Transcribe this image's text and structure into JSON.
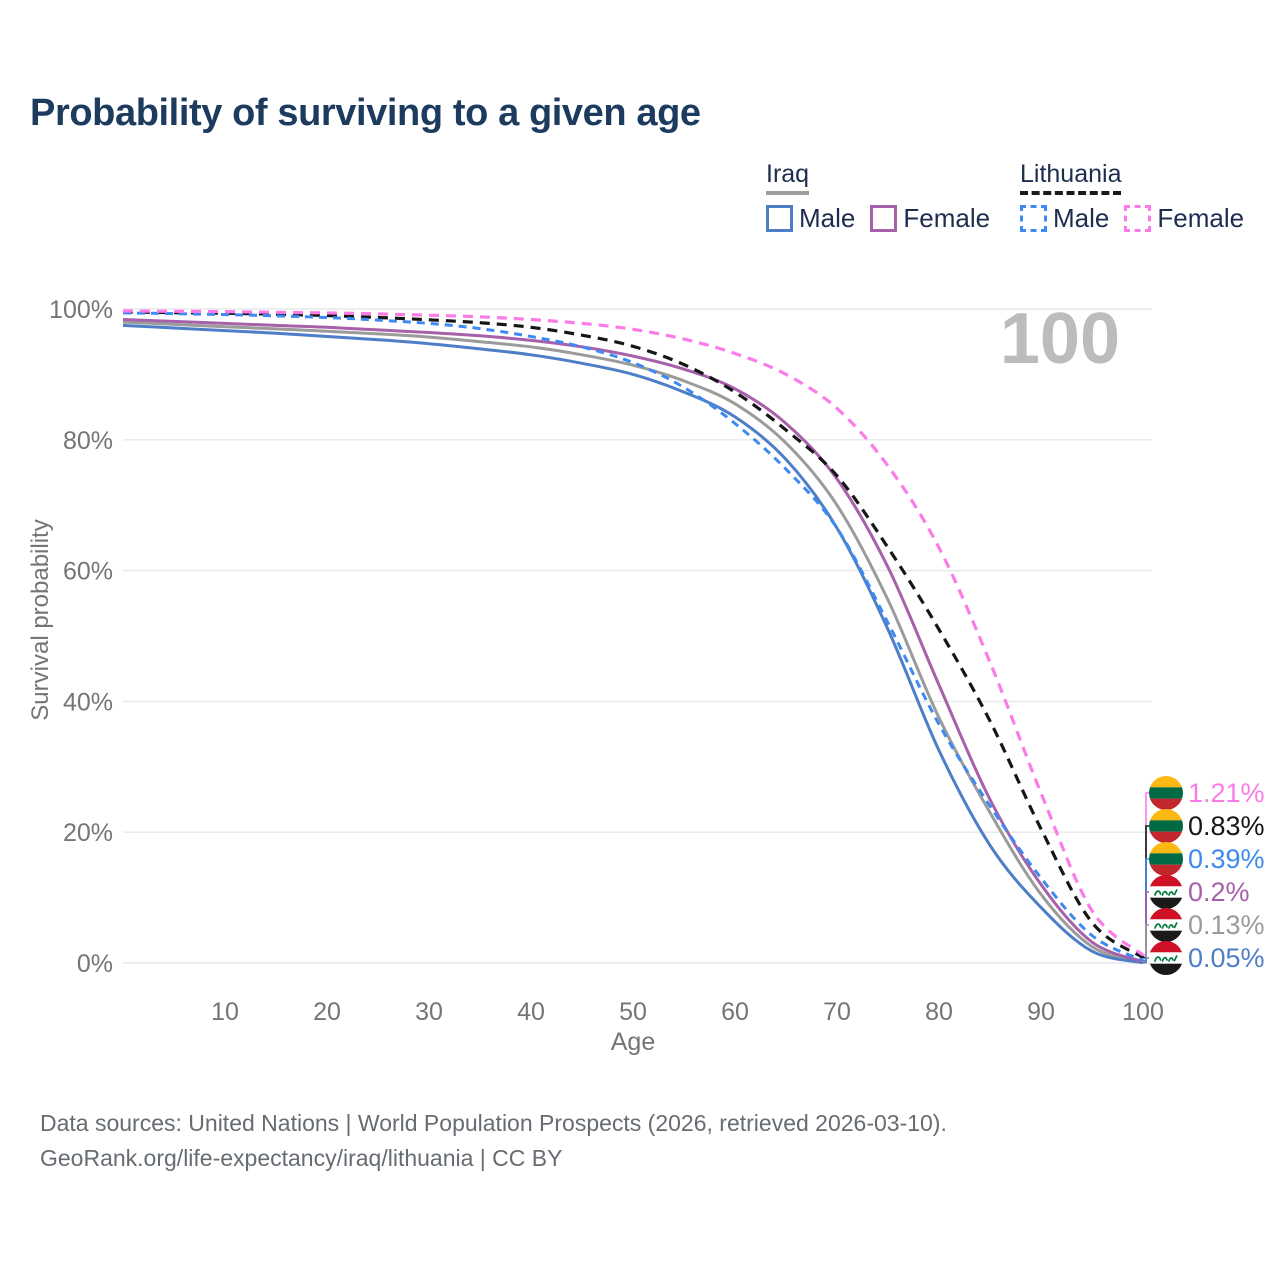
{
  "title": "Probability of surviving to a given age",
  "watermark_age": "100",
  "legend": {
    "groups": [
      {
        "label": "Iraq",
        "line_style": "solid",
        "items": [
          {
            "label": "Male",
            "color": "#4e7ec7",
            "dashed": false
          },
          {
            "label": "Female",
            "color": "#a760aa",
            "dashed": false
          }
        ]
      },
      {
        "label": "Lithuania",
        "line_style": "dashed",
        "items": [
          {
            "label": "Male",
            "color": "#3d8af2",
            "dashed": true
          },
          {
            "label": "Female",
            "color": "#fb7ce8",
            "dashed": true
          }
        ]
      }
    ]
  },
  "flags": {
    "lithuania": {
      "stripes": [
        "#FDB913",
        "#006A44",
        "#C1272D"
      ]
    },
    "iraq": {
      "stripes": [
        "#CE1126",
        "#FFFFFF",
        "#1a1a1a"
      ],
      "emblem": "#007A3D"
    }
  },
  "chart_data": {
    "type": "line",
    "title": "Probability of surviving to a given age",
    "xlabel": "Age",
    "ylabel": "Survival probability",
    "xlim": [
      0,
      100
    ],
    "ylim": [
      0,
      100
    ],
    "grid": "horizontal",
    "legend_position": "top-right",
    "x_ticks": [
      10,
      20,
      30,
      40,
      50,
      60,
      70,
      80,
      90,
      100
    ],
    "y_ticks": [
      {
        "value": 0,
        "label": "0%"
      },
      {
        "value": 20,
        "label": "20%"
      },
      {
        "value": 40,
        "label": "40%"
      },
      {
        "value": 60,
        "label": "60%"
      },
      {
        "value": 80,
        "label": "80%"
      },
      {
        "value": 100,
        "label": "100%"
      }
    ],
    "ages": [
      0,
      5,
      10,
      15,
      20,
      25,
      30,
      35,
      40,
      45,
      50,
      55,
      60,
      65,
      70,
      75,
      80,
      85,
      90,
      95,
      100
    ],
    "series": [
      {
        "key": "iraq_total",
        "name": "Iraq (both sexes)",
        "country": "Iraq",
        "sex": "all",
        "color": "#9b9b9b",
        "dash": null,
        "width": 3,
        "values": [
          98.0,
          97.65,
          97.3,
          96.95,
          96.6,
          96.2,
          95.7,
          95.0,
          94.2,
          93.0,
          91.4,
          89.0,
          85.5,
          79.5,
          70.0,
          55.5,
          37.5,
          23.0,
          10.5,
          2.5,
          0.13
        ],
        "end_label": "0.13%"
      },
      {
        "key": "iraq_male",
        "name": "Iraq Male",
        "country": "Iraq",
        "sex": "male",
        "color": "#4e7ec7",
        "dash": null,
        "width": 3,
        "values": [
          97.5,
          97.1,
          96.7,
          96.3,
          95.8,
          95.3,
          94.7,
          93.9,
          93.0,
          91.7,
          90.0,
          87.3,
          83.5,
          77.0,
          66.5,
          51.0,
          32.5,
          18.0,
          8.5,
          1.8,
          0.05
        ],
        "end_label": "0.05%"
      },
      {
        "key": "iraq_female",
        "name": "Iraq Female",
        "country": "Iraq",
        "sex": "female",
        "color": "#a760aa",
        "dash": null,
        "width": 3,
        "values": [
          98.4,
          98.1,
          97.8,
          97.5,
          97.2,
          96.8,
          96.4,
          95.9,
          95.2,
          94.2,
          92.8,
          90.8,
          87.8,
          82.5,
          74.0,
          60.5,
          42.5,
          25.0,
          12.0,
          3.2,
          0.2
        ],
        "end_label": "0.2%"
      },
      {
        "key": "lithuania_total",
        "name": "Lithuania (both sexes)",
        "country": "Lithuania",
        "sex": "all",
        "color": "#161616",
        "dash": "10 7",
        "width": 3.2,
        "values": [
          99.55,
          99.45,
          99.35,
          99.2,
          99.0,
          98.7,
          98.35,
          97.9,
          97.2,
          96.0,
          94.3,
          91.5,
          87.3,
          81.5,
          74.5,
          63.5,
          51.0,
          37.0,
          20.5,
          6.2,
          0.83
        ],
        "end_label": "0.83%"
      },
      {
        "key": "lithuania_male",
        "name": "Lithuania Male",
        "country": "Lithuania",
        "sex": "male",
        "color": "#3d8af2",
        "dash": "8 6",
        "width": 3,
        "values": [
          99.4,
          99.3,
          99.15,
          98.95,
          98.7,
          98.3,
          97.8,
          97.0,
          95.8,
          94.2,
          91.8,
          88.0,
          82.5,
          75.5,
          66.5,
          52.0,
          36.5,
          24.0,
          13.0,
          4.2,
          0.39
        ],
        "end_label": "0.39%"
      },
      {
        "key": "lithuania_female",
        "name": "Lithuania Female",
        "country": "Lithuania",
        "sex": "female",
        "color": "#fb7ce8",
        "dash": "10 7",
        "width": 3.2,
        "values": [
          99.7,
          99.65,
          99.6,
          99.5,
          99.4,
          99.25,
          99.05,
          98.8,
          98.4,
          97.8,
          96.9,
          95.4,
          93.2,
          90.0,
          84.8,
          76.0,
          63.5,
          46.0,
          26.0,
          8.0,
          1.21
        ],
        "end_label": "1.21%"
      }
    ],
    "end_labels": [
      {
        "label": "1.21%",
        "series": "Lithuania Female",
        "flag": "lithuania",
        "color": "#fb7ce8"
      },
      {
        "label": "0.83%",
        "series": "Lithuania (both sexes)",
        "flag": "lithuania",
        "color": "#161616"
      },
      {
        "label": "0.39%",
        "series": "Lithuania Male",
        "flag": "lithuania",
        "color": "#3d8af2"
      },
      {
        "label": "0.2%",
        "series": "Iraq Female",
        "flag": "iraq",
        "color": "#a760aa"
      },
      {
        "label": "0.13%",
        "series": "Iraq (both sexes)",
        "flag": "iraq",
        "color": "#9b9b9b"
      },
      {
        "label": "0.05%",
        "series": "Iraq Male",
        "flag": "iraq",
        "color": "#4e7ec7"
      }
    ]
  },
  "footer": {
    "line1": "Data sources: United Nations | World Population Prospects (2026, retrieved 2026-03-10).",
    "line2": "GeoRank.org/life-expectancy/iraq/lithuania | CC BY"
  }
}
